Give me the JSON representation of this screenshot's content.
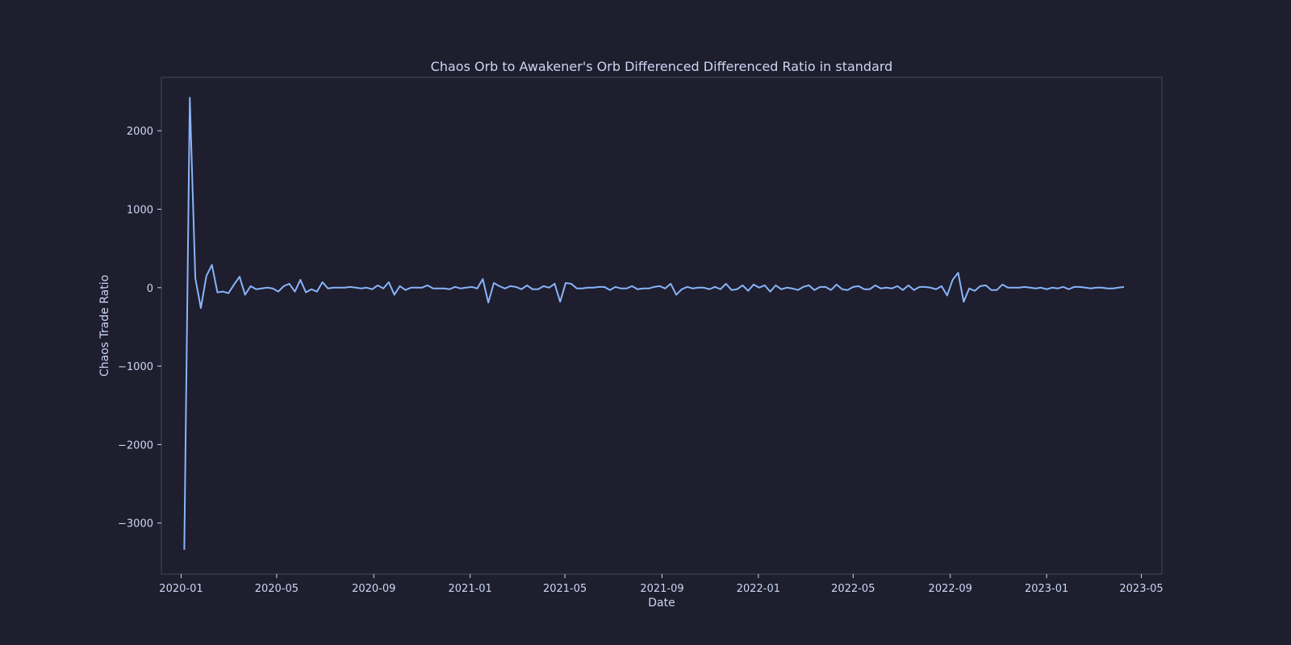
{
  "chart_data": {
    "type": "line",
    "title": "Chaos Orb to Awakener's Orb Differenced Differenced Ratio in standard",
    "xlabel": "Date",
    "ylabel": "Chaos Trade Ratio",
    "xlim": [
      "2019-12-07",
      "2023-05-27"
    ],
    "ylim": [
      -3650,
      2680
    ],
    "x_ticks": [
      "2020-01",
      "2020-05",
      "2020-09",
      "2021-01",
      "2021-05",
      "2021-09",
      "2022-01",
      "2022-05",
      "2022-09",
      "2023-01",
      "2023-05"
    ],
    "y_ticks": [
      -3000,
      -2000,
      -1000,
      0,
      1000,
      2000
    ],
    "grid": false,
    "colors": {
      "background": "#1e1e2e",
      "plot_border": "#45475a",
      "text": "#cdd6f4",
      "line": "#89b4fa"
    },
    "series": [
      {
        "name": "Differenced Differenced Ratio",
        "start_date": "2020-01-05",
        "interval_days": 7,
        "values": [
          -3340,
          2420,
          120,
          -260,
          150,
          290,
          -60,
          -50,
          -70,
          40,
          140,
          -90,
          20,
          -20,
          -10,
          0,
          -10,
          -50,
          20,
          50,
          -50,
          100,
          -60,
          -20,
          -50,
          70,
          -10,
          0,
          0,
          0,
          10,
          0,
          -10,
          0,
          -20,
          30,
          -10,
          70,
          -90,
          20,
          -30,
          0,
          0,
          0,
          30,
          -10,
          -10,
          -10,
          -20,
          10,
          -10,
          0,
          10,
          -10,
          110,
          -190,
          60,
          20,
          -10,
          20,
          10,
          -20,
          30,
          -20,
          -20,
          20,
          0,
          50,
          -180,
          60,
          50,
          -10,
          -10,
          0,
          0,
          10,
          10,
          -30,
          10,
          -10,
          -10,
          20,
          -20,
          -10,
          -10,
          10,
          20,
          -10,
          50,
          -90,
          -20,
          10,
          -10,
          0,
          0,
          -20,
          10,
          -20,
          50,
          -30,
          -20,
          30,
          -40,
          40,
          0,
          30,
          -50,
          30,
          -20,
          0,
          -10,
          -30,
          10,
          30,
          -30,
          10,
          10,
          -30,
          40,
          -20,
          -30,
          10,
          20,
          -20,
          -20,
          30,
          -10,
          0,
          -10,
          20,
          -30,
          30,
          -30,
          10,
          10,
          0,
          -20,
          20,
          -100,
          100,
          190,
          -180,
          -10,
          -40,
          20,
          30,
          -30,
          -30,
          40,
          0,
          0,
          0,
          10,
          0,
          -10,
          0,
          -20,
          0,
          -10,
          10,
          -20,
          10,
          10,
          0,
          -10,
          0,
          0,
          -10,
          -10,
          0,
          10
        ]
      }
    ]
  }
}
